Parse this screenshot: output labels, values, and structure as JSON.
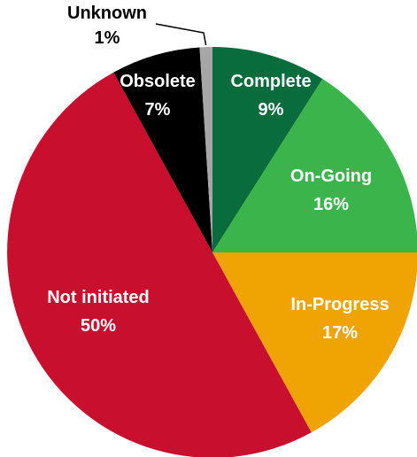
{
  "chart_data": {
    "type": "pie",
    "title": "",
    "start_angle_deg": 0,
    "direction": "clockwise",
    "slices": [
      {
        "label": "Complete",
        "value": 9,
        "display": "9%",
        "color": "#086c3c",
        "label_color": "#ffffff"
      },
      {
        "label": "On-Going",
        "value": 16,
        "display": "16%",
        "color": "#3cb44c",
        "label_color": "#ffffff"
      },
      {
        "label": "In-Progress",
        "value": 17,
        "display": "17%",
        "color": "#f0a404",
        "label_color": "#ffffff"
      },
      {
        "label": "Not initiated",
        "value": 50,
        "display": "50%",
        "color": "#c8102e",
        "label_color": "#ffffff"
      },
      {
        "label": "Obsolete",
        "value": 7,
        "display": "7%",
        "color": "#000000",
        "label_color": "#ffffff"
      },
      {
        "label": "Unknown",
        "value": 1,
        "display": "1%",
        "color": "#a6a6a6",
        "label_color": "#000000",
        "callout": true
      }
    ]
  }
}
